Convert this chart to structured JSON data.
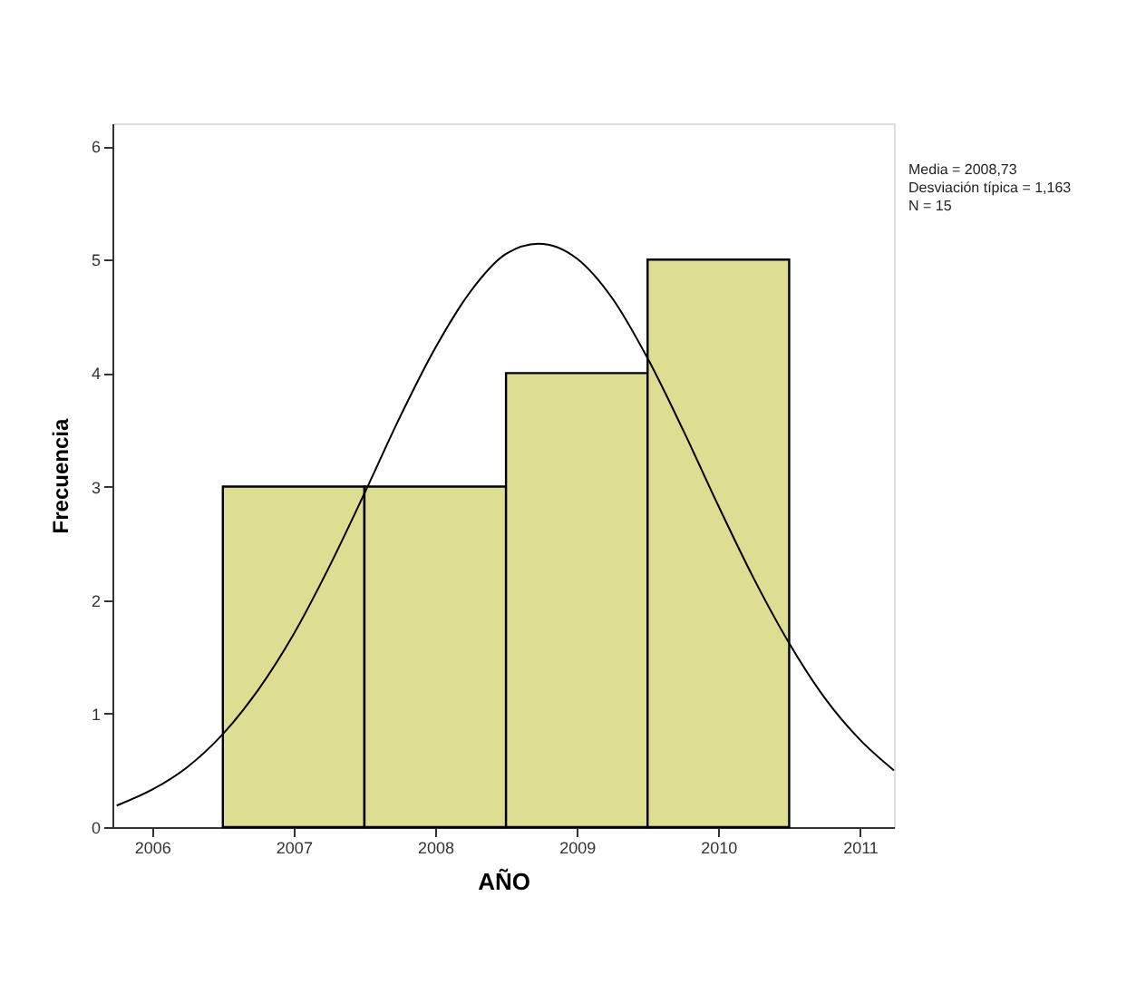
{
  "chart_data": {
    "type": "histogram",
    "xlabel": "AÑO",
    "ylabel": "Frecuencia",
    "bins": [
      2006.5,
      2007.5,
      2008.5,
      2009.5,
      2010.5
    ],
    "values": [
      3,
      3,
      4,
      5
    ],
    "color": "#dede92",
    "series": [
      {
        "type": "line",
        "color": "#000000",
        "x": [
          2005.75,
          2006.0,
          2006.25,
          2006.5,
          2006.75,
          2007.0,
          2007.25,
          2007.5,
          2007.75,
          2008.0,
          2008.25,
          2008.5,
          2008.73,
          2009.0,
          2009.25,
          2009.5,
          2009.75,
          2010.0,
          2010.25,
          2010.5,
          2010.75,
          2011.0,
          2011.24
        ],
        "values": [
          0.19,
          0.33,
          0.53,
          0.82,
          1.21,
          1.7,
          2.29,
          2.94,
          3.61,
          4.22,
          4.72,
          5.05,
          5.14,
          5.01,
          4.66,
          4.13,
          3.5,
          2.83,
          2.19,
          1.62,
          1.14,
          0.77,
          0.5
        ]
      }
    ],
    "xlim": [
      2005.72,
      2011.24
    ],
    "xticks": [
      2006,
      2007,
      2008,
      2009,
      2010,
      2011
    ],
    "ylim": [
      0,
      6.2
    ],
    "yticks": [
      0,
      1,
      2,
      3,
      4,
      5,
      6
    ],
    "grid": false,
    "annotations": [
      "Media = 2008,73",
      "Desviación típica = 1,163",
      "N = 15"
    ]
  }
}
